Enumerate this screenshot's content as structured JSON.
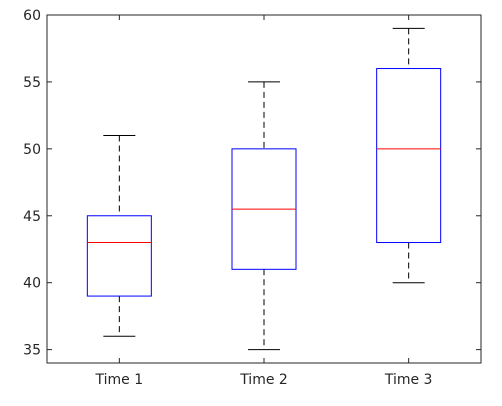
{
  "chart_data": {
    "type": "boxplot",
    "title": "",
    "xlabel": "",
    "ylabel": "",
    "ylim": [
      34,
      60
    ],
    "y_ticks": [
      35,
      40,
      45,
      50,
      55,
      60
    ],
    "categories": [
      "Time 1",
      "Time 2",
      "Time 3"
    ],
    "boxes": [
      {
        "label": "Time 1",
        "whisker_low": 36,
        "q1": 39,
        "median": 43,
        "q3": 45,
        "whisker_high": 51
      },
      {
        "label": "Time 2",
        "whisker_low": 35,
        "q1": 41,
        "median": 45.5,
        "q3": 50,
        "whisker_high": 55
      },
      {
        "label": "Time 3",
        "whisker_low": 40,
        "q1": 43,
        "median": 50,
        "q3": 56,
        "whisker_high": 59
      }
    ],
    "grid": false,
    "box_color": "#0000ff",
    "median_color": "#ff0000",
    "whisker_color": "#000000",
    "axis_color": "#262626"
  }
}
